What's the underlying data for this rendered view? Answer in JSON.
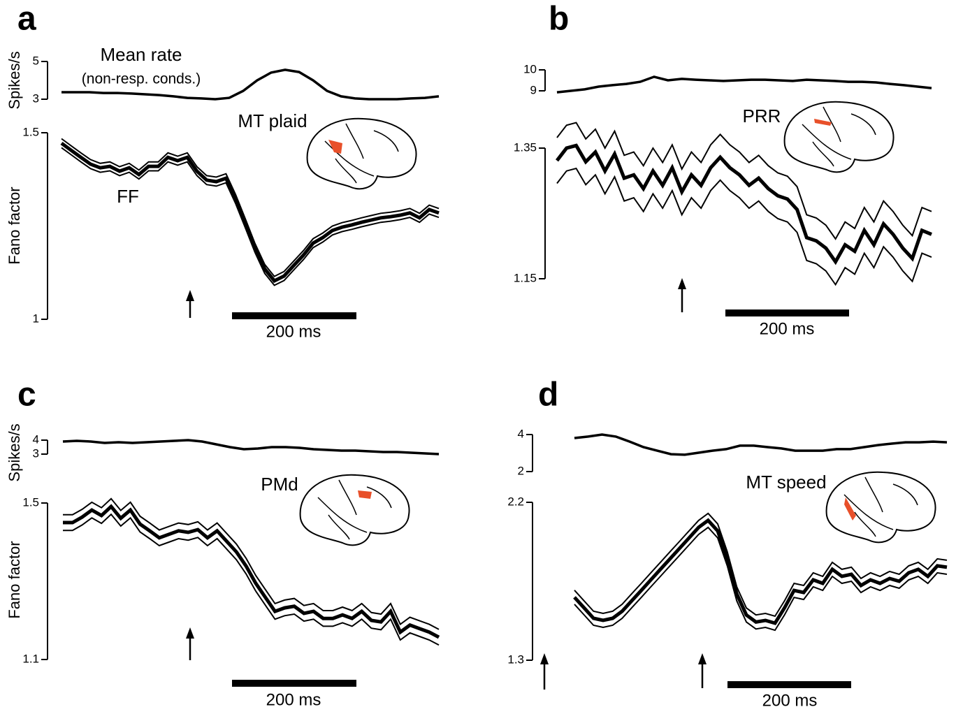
{
  "chart_data": [
    {
      "type": "line",
      "panel": "a",
      "ylabel": "Spikes/s",
      "annotations": [
        "Mean rate",
        "(non-resp. conds.)"
      ],
      "color": "#000000",
      "ylim": [
        3,
        5
      ],
      "yticks": [
        3,
        5
      ],
      "values": [
        3.37,
        3.37,
        3.37,
        3.33,
        3.33,
        3.3,
        3.26,
        3.22,
        3.15,
        3.07,
        3.04,
        3.0,
        3.07,
        3.44,
        4.0,
        4.41,
        4.56,
        4.44,
        4.0,
        3.44,
        3.15,
        3.04,
        3.0,
        3.0,
        3.0,
        3.04,
        3.07,
        3.15
      ]
    },
    {
      "type": "line",
      "ylabel": "Fano factor",
      "label": "MT plaid",
      "annotations": [
        "FF"
      ],
      "scale_bar": "200 ms",
      "color": "#000000",
      "ylim": [
        1,
        1.5
      ],
      "yticks": [
        1,
        1.5
      ],
      "error": 0.012,
      "values": [
        1.472,
        1.453,
        1.434,
        1.416,
        1.406,
        1.41,
        1.397,
        1.406,
        1.388,
        1.41,
        1.41,
        1.434,
        1.425,
        1.434,
        1.397,
        1.373,
        1.369,
        1.378,
        1.322,
        1.257,
        1.191,
        1.135,
        1.103,
        1.116,
        1.144,
        1.172,
        1.204,
        1.219,
        1.238,
        1.247,
        1.253,
        1.26,
        1.266,
        1.272,
        1.275,
        1.279,
        1.285,
        1.272,
        1.294,
        1.285
      ]
    },
    {
      "type": "line",
      "panel": "b",
      "color": "#000000",
      "ylim": [
        9,
        10
      ],
      "yticks": [
        9,
        10
      ],
      "values": [
        8.93,
        9.0,
        9.07,
        9.2,
        9.27,
        9.33,
        9.43,
        9.67,
        9.5,
        9.57,
        9.53,
        9.5,
        9.47,
        9.5,
        9.53,
        9.53,
        9.5,
        9.47,
        9.53,
        9.5,
        9.47,
        9.43,
        9.43,
        9.4,
        9.33,
        9.27,
        9.2,
        9.13
      ]
    },
    {
      "type": "line",
      "label": "PRR",
      "scale_bar": "200 ms",
      "color": "#000000",
      "ylim": [
        1.15,
        1.35
      ],
      "yticks": [
        1.15,
        1.35
      ],
      "error": 0.035,
      "values": [
        1.331,
        1.35,
        1.354,
        1.329,
        1.344,
        1.315,
        1.341,
        1.304,
        1.309,
        1.288,
        1.315,
        1.293,
        1.32,
        1.283,
        1.309,
        1.293,
        1.32,
        1.336,
        1.32,
        1.309,
        1.293,
        1.304,
        1.288,
        1.277,
        1.272,
        1.256,
        1.213,
        1.208,
        1.197,
        1.176,
        1.202,
        1.192,
        1.224,
        1.202,
        1.234,
        1.218,
        1.197,
        1.181,
        1.224,
        1.218
      ]
    },
    {
      "type": "line",
      "panel": "c",
      "ylabel": "Spikes/s",
      "color": "#000000",
      "ylim": [
        3,
        4
      ],
      "yticks": [
        3,
        4
      ],
      "values": [
        3.9,
        3.95,
        3.9,
        3.8,
        3.85,
        3.8,
        3.85,
        3.9,
        3.95,
        4.0,
        3.9,
        3.7,
        3.5,
        3.35,
        3.4,
        3.5,
        3.5,
        3.45,
        3.35,
        3.3,
        3.25,
        3.25,
        3.2,
        3.15,
        3.15,
        3.1,
        3.05,
        3.0
      ]
    },
    {
      "type": "line",
      "ylabel": "Fano factor",
      "label": "PMd",
      "scale_bar": "200 ms",
      "color": "#000000",
      "ylim": [
        1.1,
        1.5
      ],
      "yticks": [
        1.1,
        1.5
      ],
      "error": 0.02,
      "values": [
        1.45,
        1.45,
        1.464,
        1.482,
        1.468,
        1.491,
        1.461,
        1.482,
        1.446,
        1.429,
        1.411,
        1.42,
        1.429,
        1.425,
        1.432,
        1.411,
        1.429,
        1.402,
        1.375,
        1.339,
        1.295,
        1.259,
        1.223,
        1.232,
        1.236,
        1.218,
        1.223,
        1.205,
        1.205,
        1.214,
        1.205,
        1.223,
        1.2,
        1.196,
        1.223,
        1.17,
        1.188,
        1.179,
        1.17,
        1.157
      ]
    },
    {
      "type": "line",
      "panel": "d",
      "color": "#000000",
      "ylim": [
        2,
        4
      ],
      "yticks": [
        2,
        4
      ],
      "values": [
        3.81,
        3.89,
        4.0,
        3.89,
        3.62,
        3.32,
        3.13,
        2.94,
        2.91,
        3.02,
        3.13,
        3.21,
        3.4,
        3.4,
        3.32,
        3.25,
        3.13,
        3.13,
        3.13,
        3.21,
        3.21,
        3.32,
        3.43,
        3.51,
        3.58,
        3.58,
        3.62,
        3.58
      ]
    },
    {
      "type": "line",
      "label": "MT speed",
      "scale_bar": "200 ms",
      "color": "#000000",
      "ylim": [
        1.3,
        2.2
      ],
      "yticks": [
        1.3,
        2.2
      ],
      "error": 0.04,
      "values": [
        1.659,
        1.599,
        1.539,
        1.527,
        1.539,
        1.579,
        1.639,
        1.698,
        1.758,
        1.818,
        1.878,
        1.937,
        1.997,
        2.057,
        2.097,
        2.037,
        1.878,
        1.678,
        1.558,
        1.518,
        1.527,
        1.511,
        1.599,
        1.698,
        1.686,
        1.758,
        1.738,
        1.818,
        1.778,
        1.79,
        1.726,
        1.758,
        1.738,
        1.766,
        1.75,
        1.798,
        1.818,
        1.778,
        1.838,
        1.83
      ]
    }
  ]
}
